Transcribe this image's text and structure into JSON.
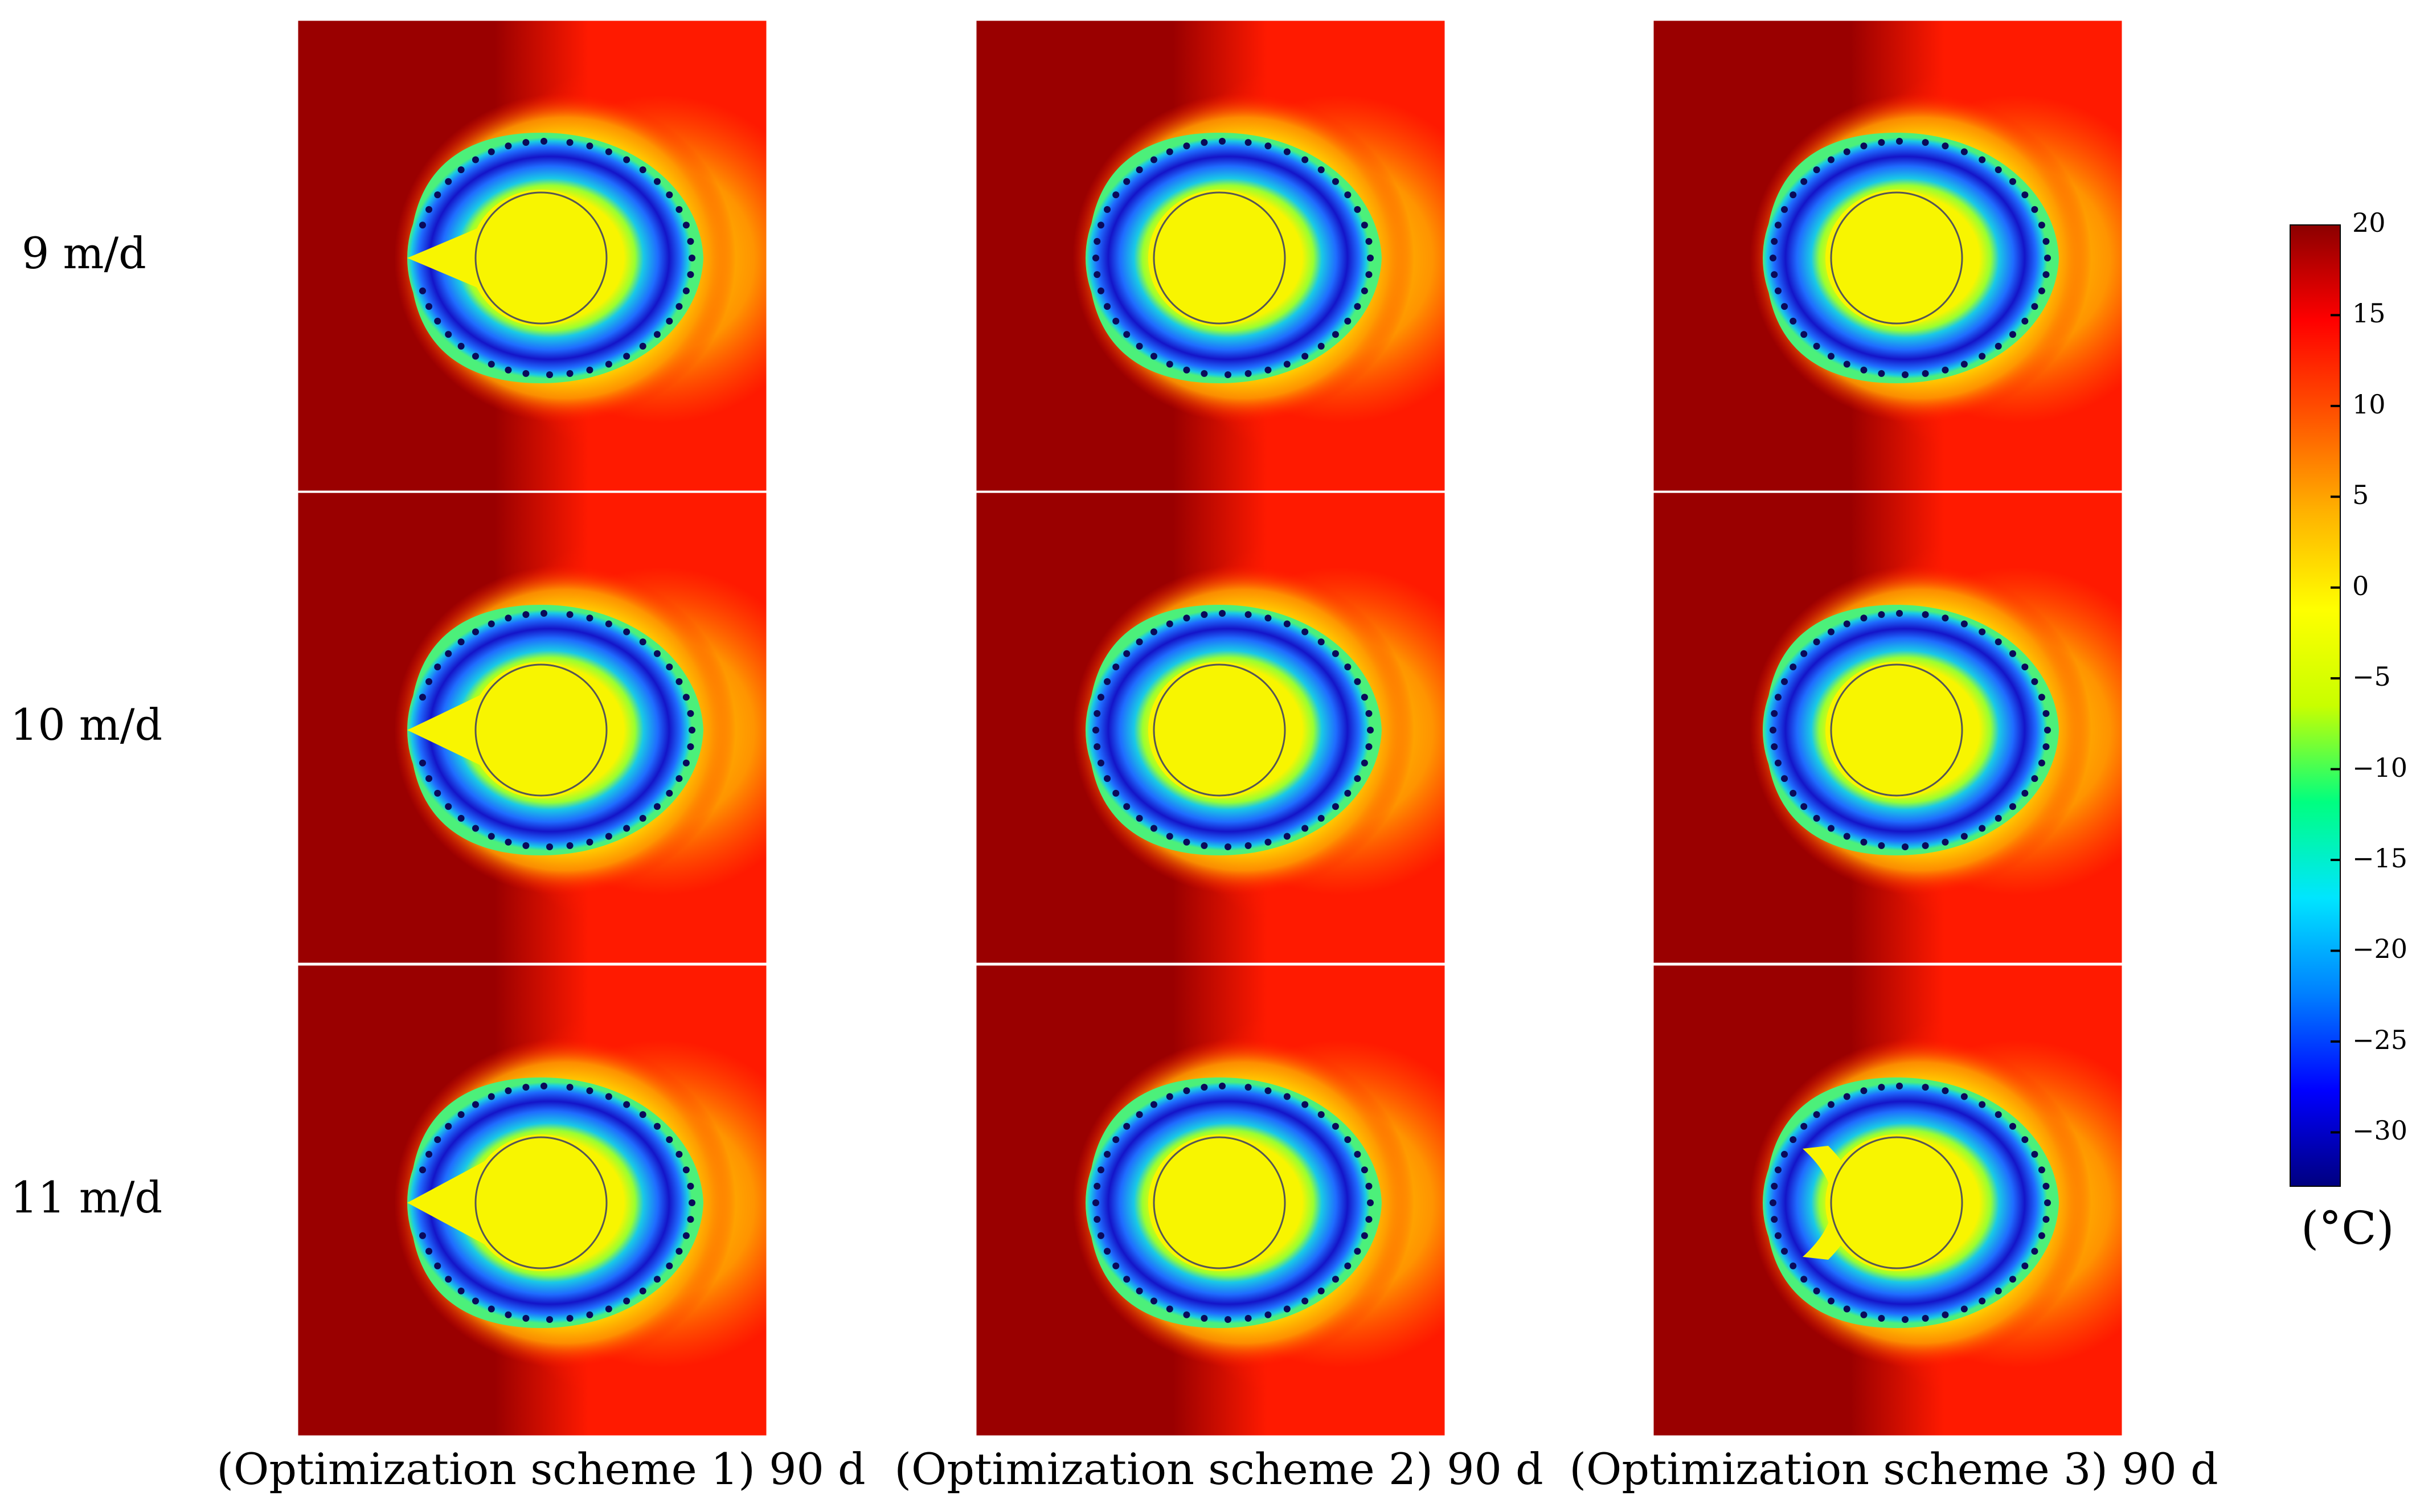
{
  "rows": [
    {
      "label": "9 m/d"
    },
    {
      "label": "10 m/d"
    },
    {
      "label": "11 m/d"
    }
  ],
  "columns": [
    {
      "label": "(Optimization scheme 1) 90 d",
      "gap": "inner"
    },
    {
      "label": "(Optimization scheme 2) 90 d",
      "gap": "none"
    },
    {
      "label": "(Optimization scheme 3) 90 d",
      "gap": "outer"
    }
  ],
  "colorbar": {
    "unit": "(°C)",
    "min": -33,
    "max": 20,
    "ticks": [
      "20",
      "15",
      "10",
      "5",
      "0",
      "−5",
      "−10",
      "−15",
      "−20",
      "−25",
      "−30"
    ],
    "tick_values": [
      20,
      15,
      10,
      5,
      0,
      -5,
      -10,
      -15,
      -20,
      -25,
      -30
    ],
    "colormap": [
      "#00007f",
      "#0000ff",
      "#007fff",
      "#00e5ff",
      "#00ff80",
      "#c8ff00",
      "#ffff00",
      "#ffb300",
      "#ff5500",
      "#ff0000",
      "#8b0000"
    ]
  },
  "colors": {
    "background_far": "#9a0000",
    "warm_red": "#ff1a00",
    "plume_orange": "#ff9a00",
    "plume_yellow": "#ffe100",
    "core_yellow": "#f8f500",
    "frozen_outer": "#19c9e6",
    "frozen_mid": "#1f6cff",
    "frozen_deep": "#1414c8",
    "pipe_dot": "#0a0a5a"
  }
}
